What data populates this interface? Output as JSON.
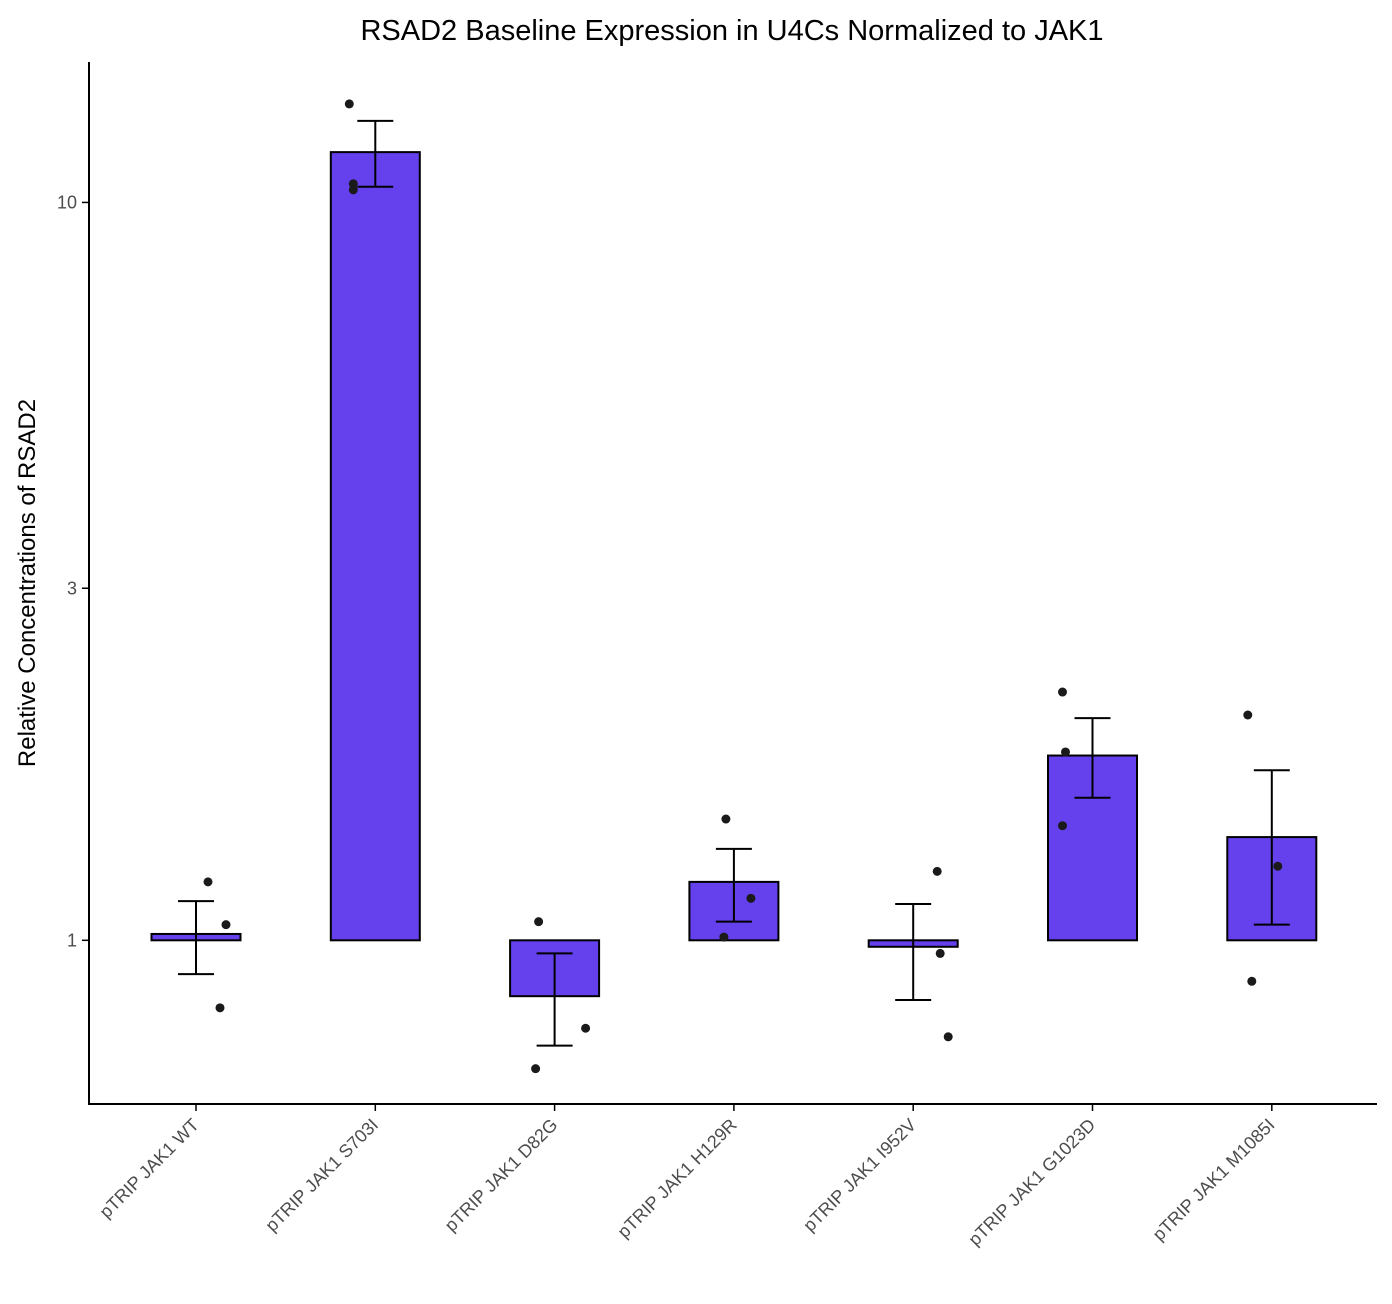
{
  "chart_data": {
    "type": "bar",
    "title": "RSAD2 Baseline Expression in U4Cs Normalized to JAK1",
    "xlabel": "",
    "ylabel": "Relative Concentrations of RSAD2",
    "y_scale": "log",
    "y_baseline": 1,
    "ylim": [
      0.6,
      15.5
    ],
    "y_ticks": [
      1,
      3,
      10
    ],
    "y_tick_labels": [
      "1",
      "3",
      "10"
    ],
    "grid": false,
    "legend": "none",
    "categories": [
      "pTRIP JAK1 WT",
      "pTRIP JAK1 S703I",
      "pTRIP JAK1 D82G",
      "pTRIP JAK1 H129R",
      "pTRIP JAK1 I952V",
      "pTRIP JAK1 G1023D",
      "pTRIP JAK1 M1085I"
    ],
    "values": [
      1.02,
      11.7,
      0.84,
      1.2,
      0.98,
      1.78,
      1.38
    ],
    "error_low": [
      0.9,
      10.5,
      0.72,
      1.06,
      0.83,
      1.56,
      1.05
    ],
    "error_high": [
      1.13,
      12.9,
      0.96,
      1.33,
      1.12,
      2.0,
      1.7
    ],
    "points": [
      [
        1.2,
        1.05,
        0.81
      ],
      [
        13.6,
        10.6,
        10.4
      ],
      [
        1.06,
        0.76,
        0.67
      ],
      [
        1.46,
        1.14,
        1.01
      ],
      [
        1.24,
        0.96,
        0.74
      ],
      [
        2.17,
        1.8,
        1.43
      ],
      [
        2.02,
        1.26,
        0.88
      ]
    ],
    "colors": {
      "bar_fill": "#6541EE",
      "bar_stroke": "#000000",
      "points": "#1a1a1a"
    }
  }
}
